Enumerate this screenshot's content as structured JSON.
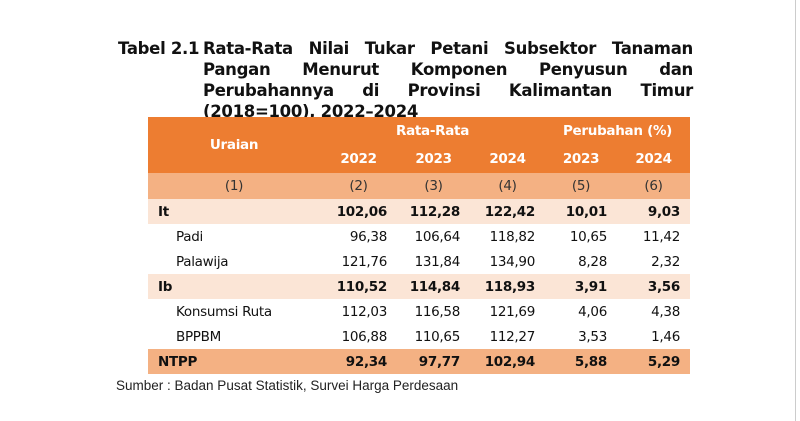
{
  "title": {
    "label": "Tabel 2.1",
    "text": "Rata-Rata Nilai Tukar Petani Subsektor Tanaman Pangan Menurut Komponen Penyusun dan Perubahannya di Provinsi Kalimantan Timur (2018=100), 2022–2024"
  },
  "header": {
    "uraian": "Uraian",
    "rata": "Rata-Rata",
    "perubahan": "Perubahan (%)",
    "years": [
      "2022",
      "2023",
      "2024",
      "2023",
      "2024"
    ],
    "nums": [
      "(1)",
      "(2)",
      "(3)",
      "(4)",
      "(5)",
      "(6)"
    ]
  },
  "rows": [
    {
      "label": "It",
      "values": [
        "102,06",
        "112,28",
        "122,42",
        "10,01",
        "9,03"
      ]
    },
    {
      "label": "Padi",
      "values": [
        "96,38",
        "106,64",
        "118,82",
        "10,65",
        "11,42"
      ]
    },
    {
      "label": "Palawija",
      "values": [
        "121,76",
        "131,84",
        "134,90",
        "8,28",
        "2,32"
      ]
    },
    {
      "label": "Ib",
      "values": [
        "110,52",
        "114,84",
        "118,93",
        "3,91",
        "3,56"
      ]
    },
    {
      "label": "Konsumsi Ruta",
      "values": [
        "112,03",
        "116,58",
        "121,69",
        "4,06",
        "4,38"
      ]
    },
    {
      "label": "BPPBM",
      "values": [
        "106,88",
        "110,65",
        "112,27",
        "3,53",
        "1,46"
      ]
    },
    {
      "label": "NTPP",
      "values": [
        "92,34",
        "97,77",
        "102,94",
        "5,88",
        "5,29"
      ]
    }
  ],
  "source": "Sumber : Badan Pusat Statistik, Survei Harga Perdesaan"
}
